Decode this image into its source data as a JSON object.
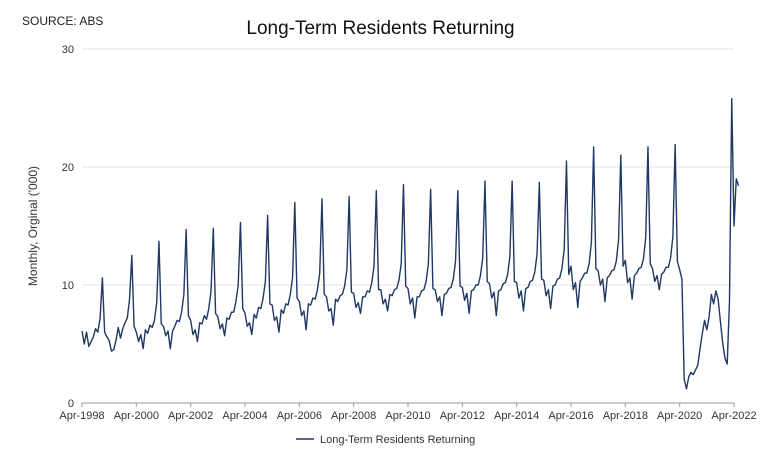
{
  "header": {
    "source": "SOURCE: ABS"
  },
  "chart_data": {
    "type": "line",
    "title": "Long-Term Residents Returning",
    "xlabel": "",
    "ylabel": "Monthly, Orginal ('000)",
    "ylim": [
      0,
      30
    ],
    "yticks": [
      0,
      10,
      20,
      30
    ],
    "xlim": [
      "1998-04",
      "2022-04"
    ],
    "xticks": [
      "Apr-1998",
      "Apr-2000",
      "Apr-2002",
      "Apr-2004",
      "Apr-2006",
      "Apr-2008",
      "Apr-2010",
      "Apr-2012",
      "Apr-2014",
      "Apr-2016",
      "Apr-2018",
      "Apr-2020",
      "Apr-2022"
    ],
    "grid": "horizontal",
    "legend": "bottom",
    "line_color": "#1f3864",
    "series": [
      {
        "name": "Long-Term Residents Returning",
        "start": "1998-04",
        "frequency": "monthly",
        "values": [
          6.1,
          5.0,
          6.0,
          4.8,
          5.2,
          5.6,
          6.3,
          6.0,
          7.2,
          10.6,
          6.0,
          5.6,
          5.3,
          4.4,
          4.5,
          5.3,
          6.4,
          5.5,
          6.3,
          6.8,
          7.2,
          8.8,
          12.5,
          6.5,
          6.0,
          5.2,
          5.8,
          4.6,
          6.2,
          5.9,
          6.6,
          6.4,
          7.0,
          8.5,
          13.7,
          6.7,
          6.5,
          5.7,
          6.1,
          4.6,
          6.1,
          6.5,
          7.0,
          6.9,
          7.7,
          9.2,
          14.7,
          7.4,
          7.0,
          5.8,
          6.2,
          5.2,
          6.8,
          6.7,
          7.4,
          7.1,
          8.0,
          9.5,
          14.8,
          7.6,
          7.3,
          6.3,
          6.7,
          5.7,
          7.2,
          7.1,
          7.7,
          7.7,
          8.6,
          10.0,
          15.3,
          8.0,
          7.6,
          6.5,
          6.8,
          5.8,
          7.5,
          7.2,
          8.1,
          8.0,
          8.9,
          10.3,
          15.9,
          8.4,
          8.3,
          7.0,
          7.3,
          6.0,
          7.9,
          7.6,
          8.4,
          8.3,
          9.2,
          10.6,
          17.0,
          8.9,
          8.6,
          7.4,
          7.8,
          6.2,
          8.4,
          8.3,
          8.9,
          8.8,
          9.6,
          11.0,
          17.3,
          9.2,
          9.0,
          7.8,
          8.0,
          6.6,
          8.8,
          8.6,
          9.1,
          9.2,
          9.9,
          11.3,
          17.5,
          9.4,
          9.3,
          8.1,
          8.5,
          7.6,
          9.0,
          9.0,
          9.5,
          9.4,
          10.2,
          11.6,
          18.0,
          9.6,
          9.6,
          8.4,
          8.8,
          7.8,
          9.2,
          9.1,
          9.6,
          9.7,
          10.4,
          11.8,
          18.5,
          9.9,
          9.7,
          8.4,
          8.9,
          7.2,
          9.0,
          9.0,
          9.5,
          9.6,
          10.3,
          11.8,
          18.1,
          9.7,
          9.6,
          8.6,
          9.0,
          7.4,
          9.2,
          9.3,
          9.7,
          9.8,
          10.5,
          12.0,
          18.0,
          9.9,
          9.8,
          8.7,
          9.3,
          7.6,
          9.5,
          9.6,
          10.0,
          10.0,
          10.8,
          12.3,
          18.8,
          10.3,
          10.1,
          8.9,
          9.4,
          7.4,
          9.5,
          9.6,
          10.1,
          10.2,
          10.9,
          12.4,
          18.8,
          10.3,
          10.2,
          8.9,
          9.5,
          7.8,
          9.7,
          9.8,
          10.3,
          10.4,
          11.1,
          12.6,
          18.7,
          10.5,
          10.4,
          9.1,
          9.6,
          8.0,
          9.9,
          10.0,
          10.5,
          10.6,
          11.4,
          13.0,
          20.5,
          10.9,
          11.6,
          9.6,
          10.2,
          8.1,
          10.3,
          10.6,
          11.0,
          11.0,
          11.8,
          13.6,
          21.7,
          11.4,
          11.2,
          10.0,
          10.5,
          8.6,
          10.6,
          10.8,
          11.2,
          11.3,
          12.0,
          13.8,
          21.0,
          11.6,
          12.1,
          10.2,
          10.6,
          8.8,
          10.8,
          11.0,
          11.4,
          11.5,
          12.2,
          14.0,
          21.7,
          11.8,
          11.4,
          10.3,
          10.8,
          9.6,
          10.9,
          11.1,
          11.5,
          11.5,
          12.3,
          14.1,
          21.9,
          12.0,
          11.3,
          10.5,
          2.0,
          1.2,
          2.2,
          2.6,
          2.4,
          2.8,
          3.2,
          4.6,
          5.9,
          7.0,
          6.2,
          7.3,
          9.2,
          8.4,
          9.5,
          8.8,
          6.9,
          5.1,
          3.8,
          3.3,
          8.6,
          25.8,
          15.0,
          19.0,
          18.4
        ]
      }
    ]
  }
}
